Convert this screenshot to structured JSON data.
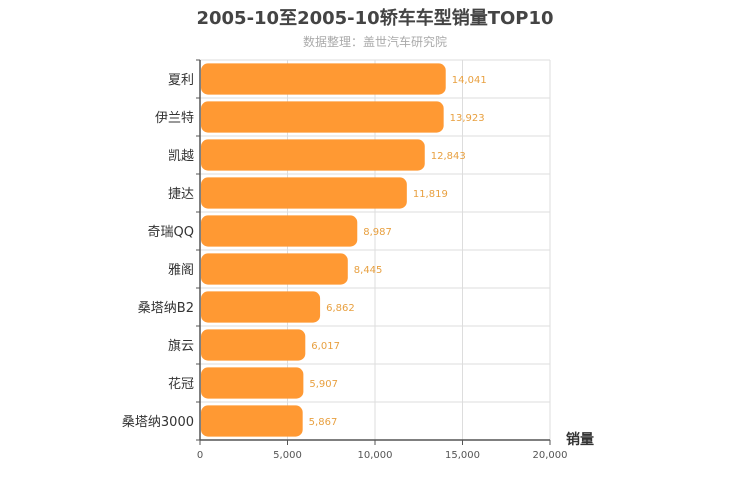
{
  "chart_data": {
    "type": "bar",
    "orientation": "horizontal",
    "title": "2005-10至2005-10轿车车型销量TOP10",
    "subtitle": "数据整理：盖世汽车研究院",
    "xlabel": "销量",
    "ylabel": "",
    "categories": [
      "夏利",
      "伊兰特",
      "凯越",
      "捷达",
      "奇瑞QQ",
      "雅阁",
      "桑塔纳B2",
      "旗云",
      "花冠",
      "桑塔纳3000"
    ],
    "values": [
      14041,
      13923,
      12843,
      11819,
      8987,
      8445,
      6862,
      6017,
      5907,
      5867
    ],
    "value_labels": [
      "14,041",
      "13,923",
      "12,843",
      "11,819",
      "8,987",
      "8,445",
      "6,862",
      "6,017",
      "5,907",
      "5,867"
    ],
    "xlim": [
      0,
      20000
    ],
    "x_ticks": [
      0,
      5000,
      10000,
      15000,
      20000
    ],
    "x_tick_labels": [
      "0",
      "5,000",
      "10,000",
      "15,000",
      "20,000"
    ],
    "grid": true,
    "legend": "none",
    "bar_color": "#ff9933",
    "grid_color": "#dddddd",
    "label_color": "#e8a040"
  }
}
